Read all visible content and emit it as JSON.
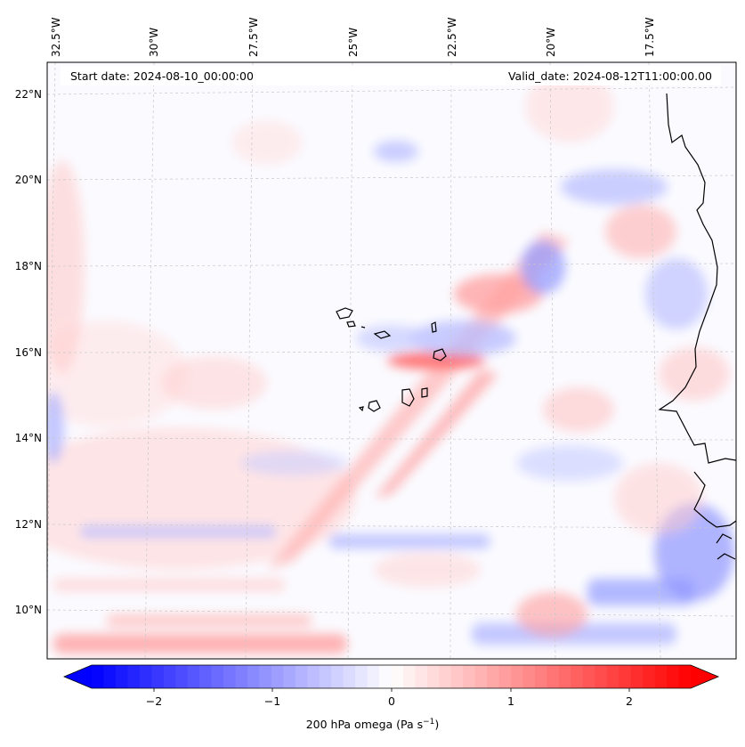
{
  "map": {
    "start_date": "Start date: 2024-08-10_00:00:00",
    "valid_date": "Valid_date: 2024-08-12T11:00:00.00",
    "lon_labels": [
      "32.5°W",
      "30°W",
      "27.5°W",
      "25°W",
      "22.5°W",
      "20°W",
      "17.5°W"
    ],
    "lat_labels": [
      "22°N",
      "20°N",
      "18°N",
      "16°N",
      "14°N",
      "12°N",
      "10°N"
    ],
    "field": "200 hPa omega",
    "extent": {
      "lon_min": -33.0,
      "lon_max": -15.0,
      "lat_min": 8.8,
      "lat_max": 22.8
    }
  },
  "colorbar": {
    "ticks": [
      "−2",
      "−1",
      "0",
      "1",
      "2"
    ],
    "range": [
      -2.6,
      2.6
    ],
    "label_text": "200 hPa omega (Pa s",
    "label_exponent": "−1",
    "label_close": ")",
    "colors": {
      "neg": "#0000ff",
      "zero": "#ffffff",
      "pos": "#ff0000"
    }
  }
}
